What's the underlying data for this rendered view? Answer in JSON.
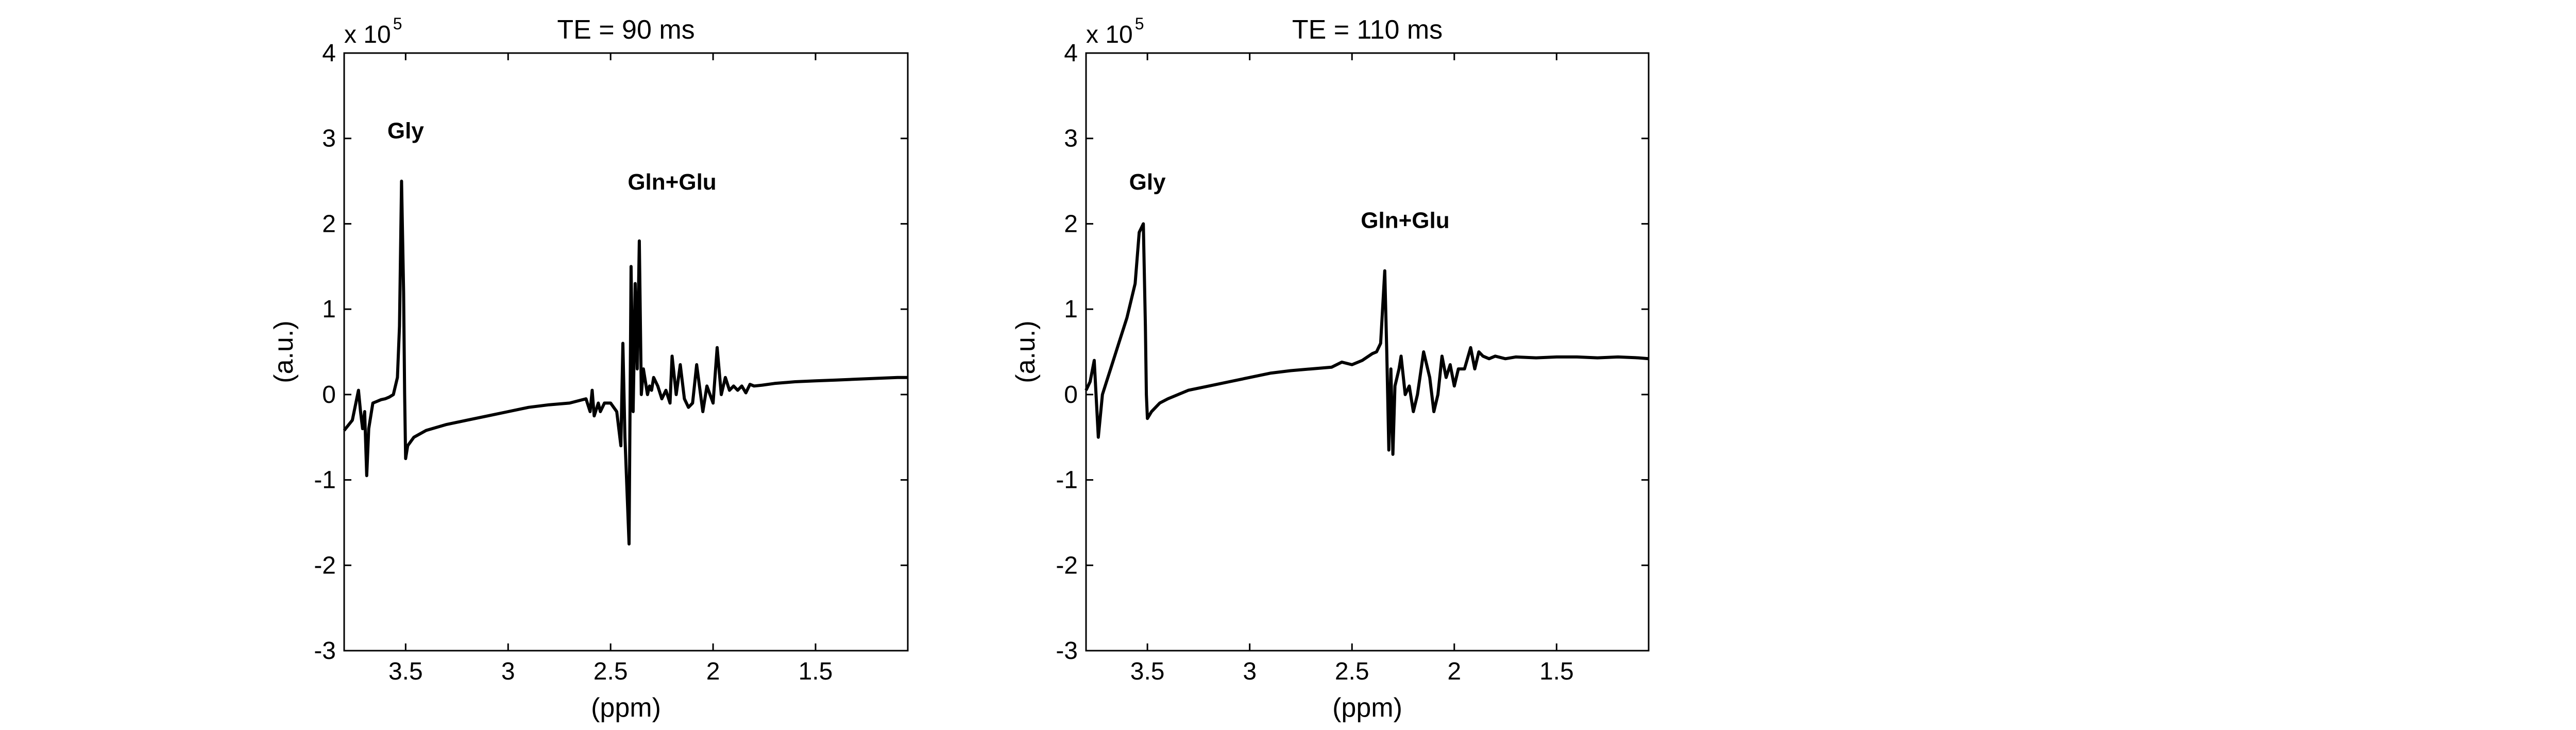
{
  "chart_data": [
    {
      "type": "line",
      "title": "TE = 90 ms",
      "xlabel": "(ppm)",
      "ylabel": "(a.u.)",
      "x_reversed": true,
      "xlim": [
        3.8,
        1.05
      ],
      "ylim": [
        -3,
        4
      ],
      "y_multiplier": "x 10",
      "y_exponent": "5",
      "xticks": [
        3.5,
        3,
        2.5,
        2,
        1.5
      ],
      "xtick_labels": [
        "3.5",
        "3",
        "2.5",
        "2",
        "1.5"
      ],
      "yticks": [
        -3,
        -2,
        -1,
        0,
        1,
        2,
        3,
        4
      ],
      "ytick_labels": [
        "-3",
        "-2",
        "-1",
        "0",
        "1",
        "2",
        "3",
        "4"
      ],
      "grid": false,
      "annotations": [
        {
          "text": "Gly",
          "x": 3.5,
          "y": 3.0
        },
        {
          "text": "Gln+Glu",
          "x": 2.2,
          "y": 2.4
        }
      ],
      "series": [
        {
          "x": [
            3.8,
            3.76,
            3.73,
            3.72,
            3.71,
            3.7,
            3.69,
            3.68,
            3.66,
            3.64,
            3.62,
            3.6,
            3.58,
            3.56,
            3.54,
            3.53,
            3.52,
            3.51,
            3.505,
            3.5,
            3.49,
            3.46,
            3.4,
            3.3,
            3.2,
            3.1,
            3.0,
            2.9,
            2.8,
            2.7,
            2.62,
            2.6,
            2.59,
            2.58,
            2.56,
            2.55,
            2.53,
            2.5,
            2.47,
            2.45,
            2.44,
            2.43,
            2.41,
            2.4,
            2.39,
            2.385,
            2.38,
            2.37,
            2.36,
            2.35,
            2.34,
            2.33,
            2.32,
            2.31,
            2.3,
            2.29,
            2.27,
            2.25,
            2.23,
            2.21,
            2.2,
            2.18,
            2.16,
            2.14,
            2.12,
            2.1,
            2.08,
            2.05,
            2.03,
            2.0,
            1.98,
            1.96,
            1.94,
            1.92,
            1.9,
            1.88,
            1.86,
            1.84,
            1.82,
            1.8,
            1.76,
            1.7,
            1.6,
            1.5,
            1.4,
            1.3,
            1.2,
            1.1,
            1.05
          ],
          "y": [
            -0.42,
            -0.3,
            0.05,
            -0.2,
            -0.4,
            -0.2,
            -0.95,
            -0.4,
            -0.1,
            -0.08,
            -0.06,
            -0.05,
            -0.03,
            0.0,
            0.2,
            0.8,
            2.5,
            1.2,
            0.0,
            -0.75,
            -0.6,
            -0.5,
            -0.42,
            -0.35,
            -0.3,
            -0.25,
            -0.2,
            -0.15,
            -0.12,
            -0.1,
            -0.05,
            -0.2,
            0.05,
            -0.25,
            -0.1,
            -0.2,
            -0.1,
            -0.1,
            -0.2,
            -0.6,
            0.6,
            -0.5,
            -1.75,
            1.5,
            -0.2,
            0.5,
            1.3,
            0.3,
            1.8,
            0.0,
            0.3,
            0.15,
            0.0,
            0.1,
            0.05,
            0.2,
            0.1,
            -0.05,
            0.05,
            -0.1,
            0.45,
            0.0,
            0.35,
            -0.05,
            -0.15,
            -0.1,
            0.35,
            -0.2,
            0.1,
            -0.1,
            0.55,
            0.0,
            0.2,
            0.05,
            0.1,
            0.05,
            0.1,
            0.02,
            0.12,
            0.1,
            0.11,
            0.13,
            0.15,
            0.16,
            0.17,
            0.18,
            0.19,
            0.2,
            0.2
          ]
        }
      ]
    },
    {
      "type": "line",
      "title": "TE = 110 ms",
      "xlabel": "(ppm)",
      "ylabel": "(a.u.)",
      "x_reversed": true,
      "xlim": [
        3.8,
        1.05
      ],
      "ylim": [
        -3,
        4
      ],
      "y_multiplier": "x 10",
      "y_exponent": "5",
      "xticks": [
        3.5,
        3,
        2.5,
        2,
        1.5
      ],
      "xtick_labels": [
        "3.5",
        "3",
        "2.5",
        "2",
        "1.5"
      ],
      "yticks": [
        -3,
        -2,
        -1,
        0,
        1,
        2,
        3,
        4
      ],
      "ytick_labels": [
        "-3",
        "-2",
        "-1",
        "0",
        "1",
        "2",
        "3",
        "4"
      ],
      "grid": false,
      "annotations": [
        {
          "text": "Gly",
          "x": 3.5,
          "y": 2.4
        },
        {
          "text": "Gln+Glu",
          "x": 2.24,
          "y": 1.95
        }
      ],
      "series": [
        {
          "x": [
            3.8,
            3.78,
            3.76,
            3.74,
            3.72,
            3.7,
            3.68,
            3.64,
            3.6,
            3.56,
            3.54,
            3.52,
            3.51,
            3.505,
            3.5,
            3.48,
            3.44,
            3.4,
            3.3,
            3.2,
            3.1,
            3.0,
            2.9,
            2.8,
            2.7,
            2.6,
            2.55,
            2.5,
            2.45,
            2.4,
            2.38,
            2.36,
            2.34,
            2.33,
            2.32,
            2.31,
            2.3,
            2.29,
            2.28,
            2.27,
            2.26,
            2.24,
            2.22,
            2.2,
            2.18,
            2.15,
            2.12,
            2.1,
            2.08,
            2.06,
            2.04,
            2.02,
            2.0,
            1.98,
            1.95,
            1.92,
            1.9,
            1.88,
            1.86,
            1.83,
            1.8,
            1.75,
            1.7,
            1.6,
            1.5,
            1.4,
            1.3,
            1.2,
            1.1,
            1.05
          ],
          "y": [
            0.05,
            0.15,
            0.4,
            -0.5,
            0.0,
            0.15,
            0.3,
            0.6,
            0.9,
            1.3,
            1.9,
            2.0,
            0.8,
            0.0,
            -0.28,
            -0.2,
            -0.1,
            -0.05,
            0.05,
            0.1,
            0.15,
            0.2,
            0.25,
            0.28,
            0.3,
            0.32,
            0.38,
            0.35,
            0.4,
            0.48,
            0.5,
            0.6,
            1.45,
            0.5,
            -0.65,
            0.3,
            -0.7,
            0.1,
            0.2,
            0.3,
            0.45,
            0.0,
            0.1,
            -0.2,
            0.0,
            0.5,
            0.2,
            -0.2,
            0.0,
            0.45,
            0.2,
            0.35,
            0.1,
            0.3,
            0.3,
            0.55,
            0.3,
            0.5,
            0.45,
            0.42,
            0.45,
            0.42,
            0.44,
            0.43,
            0.44,
            0.44,
            0.43,
            0.44,
            0.43,
            0.42
          ]
        }
      ]
    }
  ]
}
